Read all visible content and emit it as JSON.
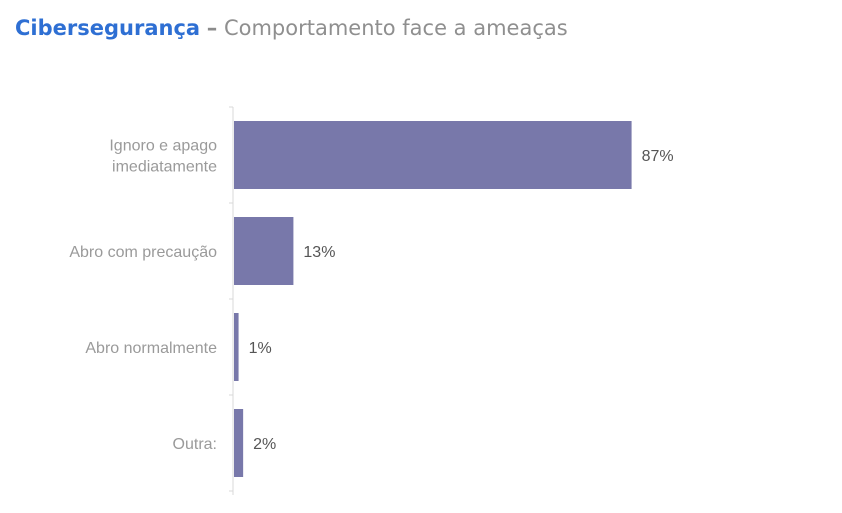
{
  "header": {
    "title": "Cibersegurança",
    "separator": "–",
    "subtitle": "Comportamento face a ameaças"
  },
  "colors": {
    "title": "#2e6fd3",
    "bar": "#7878aa",
    "axis": "#d9d9d9"
  },
  "chart_data": {
    "type": "bar",
    "orientation": "horizontal",
    "categories": [
      [
        "Ignoro e apago",
        "imediatamente"
      ],
      [
        "Abro com precaução"
      ],
      [
        "Abro normalmente"
      ],
      [
        "Outra:"
      ]
    ],
    "values": [
      87,
      13,
      1,
      2
    ],
    "value_labels": [
      "87%",
      "13%",
      "1%",
      "2%"
    ],
    "xlim": [
      0,
      100
    ],
    "grid": false,
    "legend": "none"
  }
}
